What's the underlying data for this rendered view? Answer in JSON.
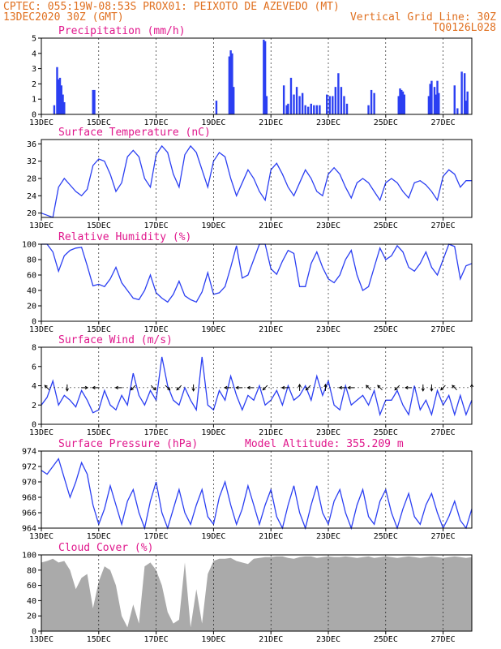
{
  "header": {
    "line1": "CPTEC:   055:19W-08:53S   PROX01: PEIXOTO DE AZEVEDO (MT)",
    "line2_left": "13DEC2020 30Z (GMT)",
    "line2_right": "Vertical Grid Line: 30Z",
    "line3_right": "TQ0126L028"
  },
  "colors": {
    "header": "#e07020",
    "title": "#e0178c",
    "series": "#2b3ff2",
    "cloud": "#aaaaaa"
  },
  "x_axis": {
    "ticks": [
      {
        "day": 13,
        "label": "13DEC"
      },
      {
        "day": 15,
        "label": "15DEC"
      },
      {
        "day": 17,
        "label": "17DEC"
      },
      {
        "day": 19,
        "label": "19DEC"
      },
      {
        "day": 21,
        "label": "21DEC"
      },
      {
        "day": 23,
        "label": "23DEC"
      },
      {
        "day": 25,
        "label": "25DEC"
      },
      {
        "day": 27,
        "label": "27DEC"
      }
    ],
    "xlim": [
      13.0,
      28.0
    ]
  },
  "chart_data": [
    {
      "id": "precip",
      "type": "bar",
      "title": "Precipitation (mm/h)",
      "ylim": [
        0,
        5
      ],
      "yticks": [
        0,
        1,
        2,
        3,
        4,
        5
      ],
      "x": [
        13.45,
        13.55,
        13.6,
        13.65,
        13.7,
        13.75,
        13.8,
        14.8,
        14.85,
        19.1,
        19.55,
        19.6,
        19.65,
        19.7,
        20.75,
        20.8,
        20.85,
        21.45,
        21.55,
        21.6,
        21.7,
        21.8,
        21.9,
        22.0,
        22.1,
        22.2,
        22.3,
        22.4,
        22.5,
        22.6,
        22.7,
        22.95,
        23.05,
        23.15,
        23.25,
        23.35,
        23.45,
        23.55,
        23.65,
        24.4,
        24.5,
        24.6,
        25.45,
        25.5,
        25.55,
        25.6,
        25.65,
        26.5,
        26.55,
        26.6,
        26.7,
        26.75,
        26.8,
        26.85,
        27.4,
        27.5,
        27.65,
        27.75,
        27.8,
        27.85
      ],
      "values": [
        0.6,
        3.1,
        2.3,
        2.4,
        1.9,
        1.3,
        0.8,
        1.6,
        1.6,
        0.9,
        3.8,
        4.2,
        4.0,
        1.8,
        4.9,
        4.8,
        1.2,
        1.9,
        0.6,
        0.7,
        2.4,
        1.3,
        1.8,
        1.2,
        1.4,
        0.6,
        0.5,
        0.7,
        0.6,
        0.6,
        0.6,
        1.3,
        1.2,
        1.2,
        1.8,
        2.7,
        1.8,
        1.2,
        0.7,
        0.6,
        1.6,
        1.4,
        1.2,
        1.7,
        1.6,
        1.5,
        1.3,
        1.2,
        2.0,
        2.2,
        1.8,
        1.3,
        2.2,
        1.4,
        1.9,
        0.4,
        2.8,
        2.7,
        0.9,
        1.5
      ]
    },
    {
      "id": "temp",
      "type": "line",
      "title": "Surface Temperature (nC)",
      "ylim": [
        19,
        37
      ],
      "yticks": [
        20,
        24,
        28,
        32,
        36
      ],
      "x": [
        13.0,
        13.2,
        13.4,
        13.6,
        13.8,
        14.0,
        14.2,
        14.4,
        14.6,
        14.8,
        15.0,
        15.2,
        15.4,
        15.6,
        15.8,
        16.0,
        16.2,
        16.4,
        16.6,
        16.8,
        17.0,
        17.2,
        17.4,
        17.6,
        17.8,
        18.0,
        18.2,
        18.4,
        18.6,
        18.8,
        19.0,
        19.2,
        19.4,
        19.6,
        19.8,
        20.0,
        20.2,
        20.4,
        20.6,
        20.8,
        21.0,
        21.2,
        21.4,
        21.6,
        21.8,
        22.0,
        22.2,
        22.4,
        22.6,
        22.8,
        23.0,
        23.2,
        23.4,
        23.6,
        23.8,
        24.0,
        24.2,
        24.4,
        24.6,
        24.8,
        25.0,
        25.2,
        25.4,
        25.6,
        25.8,
        26.0,
        26.2,
        26.4,
        26.6,
        26.8,
        27.0,
        27.2,
        27.4,
        27.6,
        27.8,
        28.0
      ],
      "values": [
        20,
        19.5,
        19,
        26,
        28,
        26.5,
        25,
        24,
        25.5,
        31,
        32.5,
        32,
        29,
        25,
        27,
        33,
        34.5,
        33,
        28,
        26,
        33.5,
        35.5,
        34,
        29,
        26,
        33.5,
        35.5,
        34,
        30,
        26,
        32,
        34,
        33,
        28,
        24,
        27,
        30,
        28,
        25,
        23,
        30,
        31.5,
        29,
        26,
        24,
        27,
        30,
        28,
        25,
        24,
        29,
        30.5,
        29,
        26,
        23.5,
        27,
        28,
        27,
        25,
        23,
        27,
        28,
        27,
        25,
        23.5,
        27,
        27.5,
        26.5,
        25,
        23,
        28.5,
        30,
        29,
        26,
        27.5,
        27.5
      ]
    },
    {
      "id": "rh",
      "type": "line",
      "title": "Relative Humidity (%)",
      "ylim": [
        0,
        100
      ],
      "yticks": [
        0,
        20,
        40,
        60,
        80,
        100
      ],
      "x": [
        13.0,
        13.2,
        13.4,
        13.6,
        13.8,
        14.0,
        14.2,
        14.4,
        14.6,
        14.8,
        15.0,
        15.2,
        15.4,
        15.6,
        15.8,
        16.0,
        16.2,
        16.4,
        16.6,
        16.8,
        17.0,
        17.2,
        17.4,
        17.6,
        17.8,
        18.0,
        18.2,
        18.4,
        18.6,
        18.8,
        19.0,
        19.2,
        19.4,
        19.6,
        19.8,
        20.0,
        20.2,
        20.4,
        20.6,
        20.8,
        21.0,
        21.2,
        21.4,
        21.6,
        21.8,
        22.0,
        22.2,
        22.4,
        22.6,
        22.8,
        23.0,
        23.2,
        23.4,
        23.6,
        23.8,
        24.0,
        24.2,
        24.4,
        24.6,
        24.8,
        25.0,
        25.2,
        25.4,
        25.6,
        25.8,
        26.0,
        26.2,
        26.4,
        26.6,
        26.8,
        27.0,
        27.2,
        27.4,
        27.6,
        27.8,
        28.0
      ],
      "values": [
        100,
        100,
        90,
        65,
        85,
        92,
        95,
        96,
        72,
        46,
        48,
        45,
        55,
        70,
        50,
        40,
        30,
        28,
        40,
        60,
        37,
        30,
        25,
        35,
        52,
        33,
        28,
        25,
        38,
        63,
        35,
        37,
        45,
        70,
        98,
        56,
        60,
        80,
        100,
        100,
        68,
        61,
        78,
        92,
        88,
        45,
        45,
        75,
        90,
        70,
        55,
        50,
        60,
        80,
        92,
        60,
        40,
        45,
        70,
        95,
        80,
        85,
        98,
        90,
        70,
        65,
        75,
        90,
        70,
        60,
        80,
        100,
        97,
        55,
        72,
        75
      ]
    },
    {
      "id": "wind",
      "type": "line",
      "title": "Surface Wind (m/s)",
      "ylim": [
        0,
        8
      ],
      "yticks": [
        0,
        2,
        4,
        6,
        8
      ],
      "x": [
        13.0,
        13.2,
        13.4,
        13.6,
        13.8,
        14.0,
        14.2,
        14.4,
        14.6,
        14.8,
        15.0,
        15.2,
        15.4,
        15.6,
        15.8,
        16.0,
        16.2,
        16.4,
        16.6,
        16.8,
        17.0,
        17.2,
        17.4,
        17.6,
        17.8,
        18.0,
        18.2,
        18.4,
        18.6,
        18.8,
        19.0,
        19.2,
        19.4,
        19.6,
        19.8,
        20.0,
        20.2,
        20.4,
        20.6,
        20.8,
        21.0,
        21.2,
        21.4,
        21.6,
        21.8,
        22.0,
        22.2,
        22.4,
        22.6,
        22.8,
        23.0,
        23.2,
        23.4,
        23.6,
        23.8,
        24.0,
        24.2,
        24.4,
        24.6,
        24.8,
        25.0,
        25.2,
        25.4,
        25.6,
        25.8,
        26.0,
        26.2,
        26.4,
        26.6,
        26.8,
        27.0,
        27.2,
        27.4,
        27.6,
        27.8,
        28.0
      ],
      "values": [
        2.0,
        2.8,
        4.5,
        2.0,
        3.0,
        2.5,
        1.8,
        3.5,
        2.5,
        1.2,
        1.5,
        3.5,
        2.0,
        1.5,
        3.0,
        2.0,
        5.3,
        3.0,
        2.0,
        3.5,
        2.5,
        7.0,
        4.0,
        2.5,
        2.0,
        3.8,
        2.5,
        1.5,
        7.0,
        2.0,
        1.5,
        3.5,
        2.5,
        5.0,
        3.0,
        1.5,
        3.0,
        2.5,
        4.0,
        2.0,
        2.5,
        3.5,
        2.0,
        4.0,
        2.5,
        3.0,
        4.0,
        2.5,
        5.0,
        3.0,
        4.5,
        2.0,
        1.5,
        4.0,
        2.0,
        2.5,
        3.0,
        2.0,
        3.5,
        1.0,
        2.5,
        2.5,
        3.5,
        2.0,
        1.0,
        4.0,
        1.5,
        2.5,
        1.0,
        3.5,
        2.0,
        3.0,
        1.0,
        3.0,
        1.0,
        2.5
      ],
      "arrows": [
        {
          "x": 13.2,
          "dir": "nw"
        },
        {
          "x": 13.9,
          "dir": "s"
        },
        {
          "x": 14.5,
          "dir": "e"
        },
        {
          "x": 14.9,
          "dir": "w"
        },
        {
          "x": 15.7,
          "dir": "w"
        },
        {
          "x": 16.2,
          "dir": "sw"
        },
        {
          "x": 16.9,
          "dir": "se"
        },
        {
          "x": 17.4,
          "dir": "se"
        },
        {
          "x": 17.8,
          "dir": "sw"
        },
        {
          "x": 18.3,
          "dir": "s"
        },
        {
          "x": 19.5,
          "dir": "w"
        },
        {
          "x": 19.9,
          "dir": "w"
        },
        {
          "x": 20.3,
          "dir": "w"
        },
        {
          "x": 20.8,
          "dir": "sw"
        },
        {
          "x": 21.5,
          "dir": "w"
        },
        {
          "x": 22.0,
          "dir": "n"
        },
        {
          "x": 22.3,
          "dir": "sw"
        },
        {
          "x": 22.9,
          "dir": "n"
        },
        {
          "x": 23.5,
          "dir": "w"
        },
        {
          "x": 23.8,
          "dir": "w"
        },
        {
          "x": 24.4,
          "dir": "nw"
        },
        {
          "x": 24.8,
          "dir": "nw"
        },
        {
          "x": 25.4,
          "dir": "sw"
        },
        {
          "x": 25.8,
          "dir": "w"
        },
        {
          "x": 26.3,
          "dir": "s"
        },
        {
          "x": 26.6,
          "dir": "s"
        },
        {
          "x": 27.0,
          "dir": "sw"
        },
        {
          "x": 27.4,
          "dir": "nw"
        },
        {
          "x": 28.0,
          "dir": "n"
        }
      ]
    },
    {
      "id": "press",
      "type": "line",
      "title": "Surface Pressure (hPa)",
      "subtitle": "Model Altitude: 355.209 m",
      "ylim": [
        964,
        974
      ],
      "yticks": [
        964,
        966,
        968,
        970,
        972,
        974
      ],
      "x": [
        13.0,
        13.2,
        13.4,
        13.6,
        13.8,
        14.0,
        14.2,
        14.4,
        14.6,
        14.8,
        15.0,
        15.2,
        15.4,
        15.6,
        15.8,
        16.0,
        16.2,
        16.4,
        16.6,
        16.8,
        17.0,
        17.2,
        17.4,
        17.6,
        17.8,
        18.0,
        18.2,
        18.4,
        18.6,
        18.8,
        19.0,
        19.2,
        19.4,
        19.6,
        19.8,
        20.0,
        20.2,
        20.4,
        20.6,
        20.8,
        21.0,
        21.2,
        21.4,
        21.6,
        21.8,
        22.0,
        22.2,
        22.4,
        22.6,
        22.8,
        23.0,
        23.2,
        23.4,
        23.6,
        23.8,
        24.0,
        24.2,
        24.4,
        24.6,
        24.8,
        25.0,
        25.2,
        25.4,
        25.6,
        25.8,
        26.0,
        26.2,
        26.4,
        26.6,
        26.8,
        27.0,
        27.2,
        27.4,
        27.6,
        27.8,
        28.0
      ],
      "values": [
        971.5,
        971,
        972,
        973,
        970.5,
        968,
        970,
        972.5,
        971,
        967,
        964.5,
        966.5,
        969.5,
        967,
        964.5,
        967.5,
        969,
        966,
        964,
        967.5,
        970,
        966,
        964,
        966.5,
        969,
        966,
        964.5,
        967,
        969,
        965.5,
        964.5,
        968,
        970,
        967,
        964.5,
        966.5,
        969.5,
        967,
        964.5,
        967,
        969,
        965.5,
        964,
        967,
        969.5,
        966,
        964,
        967,
        969.5,
        966,
        964.5,
        967.5,
        969,
        966,
        964,
        967,
        969,
        965.5,
        964.5,
        967.5,
        969,
        966,
        964,
        966.5,
        968.5,
        965.5,
        964.5,
        967,
        968.5,
        966,
        964,
        965.5,
        967.5,
        965,
        964,
        966.5
      ]
    },
    {
      "id": "cloud",
      "type": "area",
      "title": "Cloud Cover (%)",
      "ylim": [
        0,
        100
      ],
      "yticks": [
        0,
        20,
        40,
        60,
        80,
        100
      ],
      "x": [
        13.0,
        13.2,
        13.4,
        13.6,
        13.8,
        14.0,
        14.2,
        14.4,
        14.6,
        14.8,
        15.0,
        15.2,
        15.4,
        15.6,
        15.8,
        16.0,
        16.2,
        16.4,
        16.6,
        16.8,
        17.0,
        17.2,
        17.4,
        17.6,
        17.8,
        18.0,
        18.2,
        18.4,
        18.6,
        18.8,
        19.0,
        19.2,
        19.4,
        19.6,
        19.8,
        20.0,
        20.2,
        20.4,
        20.6,
        20.8,
        21.0,
        21.2,
        21.4,
        21.6,
        21.8,
        22.0,
        22.2,
        22.4,
        22.6,
        22.8,
        23.0,
        23.2,
        23.4,
        23.6,
        23.8,
        24.0,
        24.2,
        24.4,
        24.6,
        24.8,
        25.0,
        25.2,
        25.4,
        25.6,
        25.8,
        26.0,
        26.2,
        26.4,
        26.6,
        26.8,
        27.0,
        27.2,
        27.4,
        27.6,
        27.8,
        28.0
      ],
      "values": [
        90,
        92,
        95,
        90,
        92,
        80,
        55,
        70,
        75,
        30,
        65,
        85,
        80,
        60,
        20,
        5,
        35,
        10,
        85,
        90,
        80,
        60,
        25,
        10,
        15,
        90,
        5,
        55,
        10,
        75,
        92,
        95,
        95,
        96,
        92,
        90,
        88,
        95,
        96,
        97,
        97,
        98,
        98,
        96,
        95,
        97,
        98,
        98,
        96,
        97,
        98,
        97,
        97,
        98,
        97,
        96,
        97,
        98,
        96,
        97,
        98,
        97,
        96,
        97,
        98,
        97,
        96,
        97,
        98,
        97,
        96,
        97,
        98,
        97,
        96,
        97
      ]
    }
  ]
}
